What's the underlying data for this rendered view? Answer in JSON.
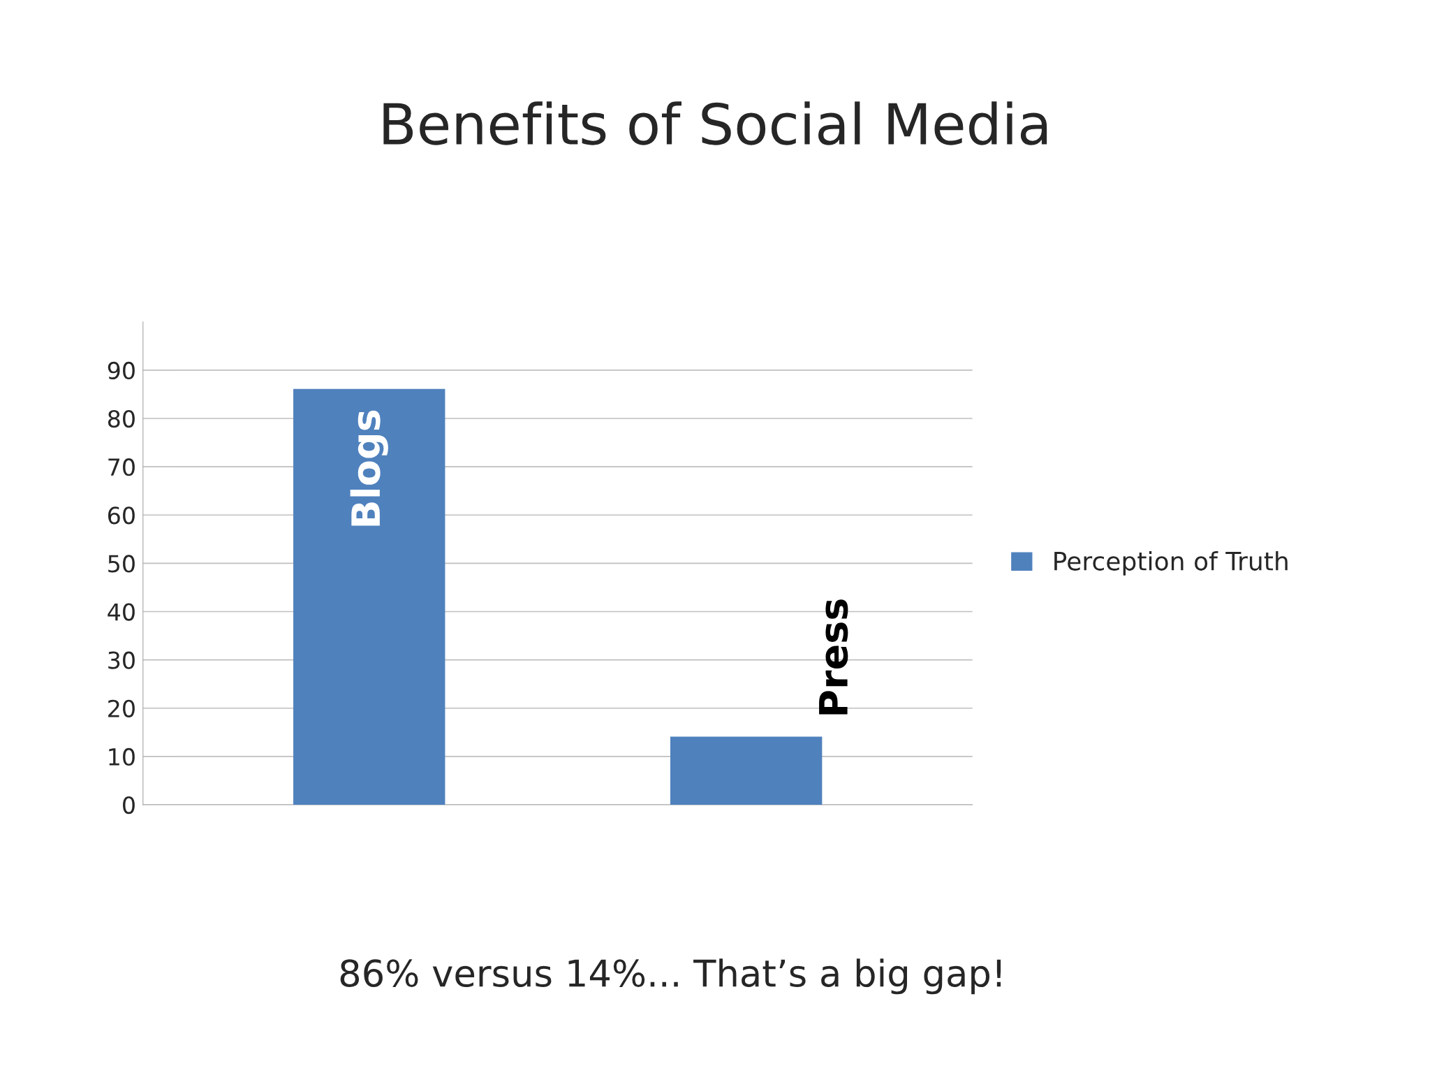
{
  "chart_data": {
    "type": "bar",
    "title": "Benefits of Social Media",
    "categories": [
      "Blogs",
      "Press"
    ],
    "series": [
      {
        "name": "Perception of Truth",
        "color": "#4f81bd",
        "values": [
          86,
          14
        ]
      }
    ],
    "ylim": [
      0,
      100
    ],
    "yticks": [
      0,
      10,
      20,
      30,
      40,
      50,
      60,
      70,
      80,
      90
    ],
    "grid": "y",
    "legend": "right",
    "annotations": [
      "86% versus 14%... That’s a big gap!"
    ]
  }
}
